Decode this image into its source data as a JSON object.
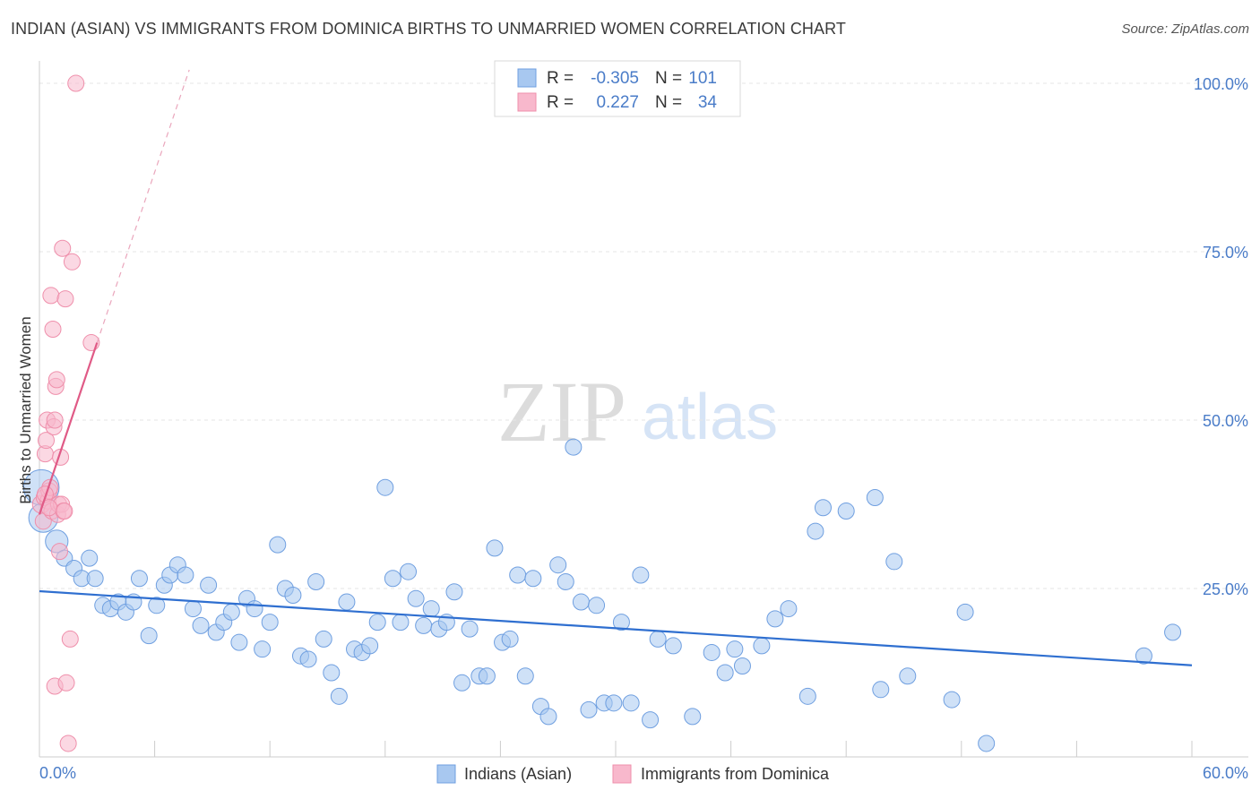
{
  "title": "INDIAN (ASIAN) VS IMMIGRANTS FROM DOMINICA BIRTHS TO UNMARRIED WOMEN CORRELATION CHART",
  "source": "Source: ZipAtlas.com",
  "watermark": {
    "zip": "ZIP",
    "atlas": "atlas"
  },
  "legend": {
    "r_label": "R =",
    "n_label": "N =",
    "rows": [
      {
        "name": "Indians (Asian)",
        "r": "-0.305",
        "n": "101",
        "color": "#a8c8f0",
        "stroke": "#6f9fe0"
      },
      {
        "name": "Immigrants from Dominica",
        "r": "0.227",
        "n": "34",
        "color": "#f8b8cc",
        "stroke": "#ef8fab"
      }
    ]
  },
  "chart_data": {
    "type": "scatter",
    "title": "INDIAN (ASIAN) VS IMMIGRANTS FROM DOMINICA BIRTHS TO UNMARRIED WOMEN CORRELATION CHART",
    "xlabel": "",
    "ylabel": "Births to Unmarried Women",
    "xlim": [
      0,
      60
    ],
    "ylim": [
      0,
      102
    ],
    "x_tick_labels": {
      "min": "0.0%",
      "max": "60.0%"
    },
    "y_ticks": [
      {
        "value": 25,
        "label": "25.0%"
      },
      {
        "value": 50,
        "label": "50.0%"
      },
      {
        "value": 75,
        "label": "75.0%"
      },
      {
        "value": 100,
        "label": "100.0%"
      }
    ],
    "grid": true,
    "series": [
      {
        "name": "Indians (Asian)",
        "color": "#a8c8f0",
        "stroke": "#6f9fe0",
        "trend": {
          "x": [
            0,
            60
          ],
          "y": [
            24.6,
            13.6
          ],
          "color": "#2f6fd0"
        },
        "points": [
          [
            0.1,
            40,
            2.2
          ],
          [
            0.2,
            35.5,
            1.8
          ],
          [
            0.9,
            32,
            1.4
          ],
          [
            1.3,
            29.5,
            1.0
          ],
          [
            1.8,
            28,
            1.0
          ],
          [
            2.2,
            26.5,
            1.0
          ],
          [
            2.6,
            29.5,
            1.0
          ],
          [
            2.9,
            26.5,
            1
          ],
          [
            3.3,
            22.5,
            1
          ],
          [
            3.7,
            22,
            1
          ],
          [
            4.1,
            23,
            1
          ],
          [
            4.5,
            21.5,
            1
          ],
          [
            4.9,
            23,
            1
          ],
          [
            5.2,
            26.5,
            1
          ],
          [
            5.7,
            18,
            1
          ],
          [
            6.1,
            22.5,
            1
          ],
          [
            6.5,
            25.5,
            1
          ],
          [
            6.8,
            27,
            1
          ],
          [
            7.2,
            28.5,
            1
          ],
          [
            7.6,
            27,
            1
          ],
          [
            8.0,
            22,
            1
          ],
          [
            8.4,
            19.5,
            1
          ],
          [
            8.8,
            25.5,
            1
          ],
          [
            9.2,
            18.5,
            1
          ],
          [
            9.6,
            20,
            1
          ],
          [
            10.0,
            21.5,
            1
          ],
          [
            10.4,
            17,
            1
          ],
          [
            10.8,
            23.5,
            1
          ],
          [
            11.2,
            22,
            1
          ],
          [
            11.6,
            16,
            1
          ],
          [
            12.0,
            20,
            1
          ],
          [
            12.4,
            31.5,
            1
          ],
          [
            12.8,
            25,
            1
          ],
          [
            13.2,
            24,
            1
          ],
          [
            13.6,
            15,
            1
          ],
          [
            14.0,
            14.5,
            1
          ],
          [
            14.4,
            26,
            1
          ],
          [
            14.8,
            17.5,
            1
          ],
          [
            15.2,
            12.5,
            1
          ],
          [
            15.6,
            9,
            1
          ],
          [
            16.0,
            23,
            1
          ],
          [
            16.4,
            16,
            1
          ],
          [
            16.8,
            15.5,
            1
          ],
          [
            17.2,
            16.5,
            1
          ],
          [
            17.6,
            20,
            1
          ],
          [
            18.0,
            40,
            1
          ],
          [
            18.4,
            26.5,
            1
          ],
          [
            18.8,
            20,
            1
          ],
          [
            19.2,
            27.5,
            1
          ],
          [
            19.6,
            23.5,
            1
          ],
          [
            20.0,
            19.5,
            1
          ],
          [
            20.4,
            22,
            1
          ],
          [
            20.8,
            19,
            1
          ],
          [
            21.2,
            20,
            1
          ],
          [
            21.6,
            24.5,
            1
          ],
          [
            22.0,
            11,
            1
          ],
          [
            22.4,
            19,
            1
          ],
          [
            22.9,
            12,
            1
          ],
          [
            23.3,
            12,
            1
          ],
          [
            23.7,
            31,
            1
          ],
          [
            24.1,
            17,
            1
          ],
          [
            24.5,
            17.5,
            1
          ],
          [
            24.9,
            27,
            1
          ],
          [
            25.3,
            12,
            1
          ],
          [
            25.7,
            26.5,
            1
          ],
          [
            26.1,
            7.5,
            1
          ],
          [
            26.5,
            6,
            1
          ],
          [
            27.0,
            28.5,
            1
          ],
          [
            27.4,
            26,
            1
          ],
          [
            27.8,
            46,
            1
          ],
          [
            28.2,
            23,
            1
          ],
          [
            28.6,
            7,
            1
          ],
          [
            29.0,
            22.5,
            1
          ],
          [
            29.4,
            8,
            1
          ],
          [
            29.9,
            8,
            1
          ],
          [
            30.3,
            20,
            1
          ],
          [
            30.8,
            8,
            1
          ],
          [
            31.3,
            27,
            1
          ],
          [
            31.8,
            5.5,
            1
          ],
          [
            32.2,
            17.5,
            1
          ],
          [
            33.0,
            16.5,
            1
          ],
          [
            34.0,
            6,
            1
          ],
          [
            35.0,
            15.5,
            1
          ],
          [
            35.7,
            12.5,
            1
          ],
          [
            36.2,
            16,
            1
          ],
          [
            36.6,
            13.5,
            1
          ],
          [
            37.6,
            16.5,
            1
          ],
          [
            38.3,
            20.5,
            1
          ],
          [
            39.0,
            22,
            1
          ],
          [
            40.0,
            9,
            1
          ],
          [
            40.4,
            33.5,
            1
          ],
          [
            40.8,
            37,
            1
          ],
          [
            42.0,
            36.5,
            1
          ],
          [
            43.5,
            38.5,
            1
          ],
          [
            43.8,
            10,
            1
          ],
          [
            44.5,
            29,
            1
          ],
          [
            45.2,
            12,
            1
          ],
          [
            47.5,
            8.5,
            1
          ],
          [
            48.2,
            21.5,
            1
          ],
          [
            49.3,
            2,
            1
          ],
          [
            57.5,
            15,
            1
          ],
          [
            59.0,
            18.5,
            1
          ]
        ]
      },
      {
        "name": "Immigrants from Dominica",
        "color": "#f8b8cc",
        "stroke": "#ef8fab",
        "trend": {
          "x": [
            0,
            3
          ],
          "y": [
            36,
            61.5
          ],
          "dash_to": [
            7.8,
            102
          ],
          "color": "#e05a86"
        },
        "points": [
          [
            0.1,
            37.5,
            1.1
          ],
          [
            0.2,
            35,
            1
          ],
          [
            0.25,
            38.5,
            1
          ],
          [
            0.3,
            45,
            1
          ],
          [
            0.35,
            47,
            1
          ],
          [
            0.4,
            50,
            1
          ],
          [
            0.45,
            38,
            1
          ],
          [
            0.5,
            39.5,
            1
          ],
          [
            0.55,
            40,
            1
          ],
          [
            0.6,
            68.5,
            1
          ],
          [
            0.65,
            36.5,
            1
          ],
          [
            0.7,
            63.5,
            1
          ],
          [
            0.75,
            49,
            1
          ],
          [
            0.8,
            50,
            1
          ],
          [
            0.85,
            55,
            1
          ],
          [
            0.9,
            56,
            1
          ],
          [
            0.95,
            36,
            1
          ],
          [
            1.0,
            37.5,
            1
          ],
          [
            1.05,
            30.5,
            1
          ],
          [
            1.1,
            44.5,
            1
          ],
          [
            1.15,
            37.5,
            1
          ],
          [
            1.2,
            75.5,
            1
          ],
          [
            1.25,
            36.5,
            1
          ],
          [
            1.35,
            68,
            1
          ],
          [
            0.8,
            10.5,
            1
          ],
          [
            1.4,
            11,
            1
          ],
          [
            1.5,
            2,
            1
          ],
          [
            1.6,
            17.5,
            1
          ],
          [
            1.7,
            73.5,
            1
          ],
          [
            1.9,
            100,
            1
          ],
          [
            2.7,
            61.5,
            1
          ],
          [
            0.3,
            39,
            1
          ],
          [
            0.5,
            37,
            1
          ],
          [
            1.3,
            36.5,
            1
          ]
        ]
      }
    ]
  },
  "bottom_legend": [
    {
      "label": "Indians (Asian)"
    },
    {
      "label": "Immigrants from Dominica"
    }
  ]
}
